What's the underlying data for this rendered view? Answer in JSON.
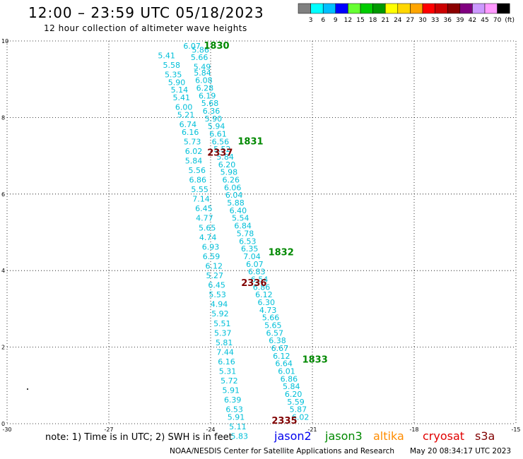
{
  "header": {
    "title": "12:00 – 23:59 UTC 05/18/2023",
    "subtitle": "12 hour collection of altimeter wave heights"
  },
  "footer": {
    "note": "note: 1) Time is in UTC; 2) SWH is in feet",
    "credit": "NOAA/NESDIS Center for Satellite Applications and Research",
    "timestamp": "May 20 08:34:17 UTC 2023"
  },
  "satellites": [
    {
      "name": "jason2",
      "color": "#0000ee"
    },
    {
      "name": "jason3",
      "color": "#008800"
    },
    {
      "name": "altika",
      "color": "#ff8c00"
    },
    {
      "name": "cryosat",
      "color": "#e00000"
    },
    {
      "name": "s3a",
      "color": "#800000"
    }
  ],
  "colorbar": {
    "labels": [
      "3",
      "6",
      "9",
      "12",
      "15",
      "18",
      "21",
      "24",
      "27",
      "30",
      "33",
      "36",
      "39",
      "42",
      "45",
      "70",
      "(ft)"
    ],
    "colors": [
      "#808080",
      "#00ffff",
      "#00bfff",
      "#0000ff",
      "#66ff33",
      "#00cc00",
      "#009900",
      "#ffff00",
      "#ffd700",
      "#ffa500",
      "#ff0000",
      "#cc0000",
      "#8b0000",
      "#800080",
      "#cc99ff",
      "#ff99ff",
      "#000000"
    ]
  },
  "chart_data": {
    "type": "scatter",
    "xlim": [
      -30,
      -15
    ],
    "ylim": [
      0,
      10
    ],
    "x_ticks": [
      -30,
      -27,
      -24,
      -21,
      -18,
      -15
    ],
    "y_ticks": [
      0,
      2,
      4,
      6,
      8,
      10
    ],
    "value_color": "#00bfd8",
    "series": [
      {
        "name": "jason3",
        "values": [
          "6.07",
          "5.86",
          "5.66",
          "5.49",
          "5.84",
          "6.08",
          "6.28",
          "6.19",
          "5.68",
          "6.36",
          "5.90",
          "5.94",
          "6.61",
          "6.56",
          "5.52",
          "5.84",
          "6.20",
          "5.98",
          "6.26",
          "6.06",
          "6.04",
          "5.88",
          "6.40",
          "5.54",
          "6.84",
          "5.78",
          "6.53",
          "6.35",
          "7.04",
          "6.07",
          "6.83",
          "6.54",
          "6.86",
          "6.12",
          "6.30",
          "4.73",
          "5.66",
          "5.65",
          "6.57",
          "6.38",
          "6.67",
          "6.12",
          "6.64",
          "6.01",
          "6.86",
          "5.84",
          "6.20",
          "5.59",
          "5.87",
          "6.02"
        ],
        "x": [
          -24.55,
          -24.3,
          -24.33,
          -24.25,
          -24.24,
          -24.2,
          -24.17,
          -24.1,
          -24.02,
          -23.98,
          -23.92,
          -23.83,
          -23.78,
          -23.71,
          -23.66,
          -23.57,
          -23.52,
          -23.46,
          -23.4,
          -23.35,
          -23.31,
          -23.26,
          -23.19,
          -23.12,
          -23.05,
          -22.98,
          -22.91,
          -22.85,
          -22.78,
          -22.7,
          -22.64,
          -22.56,
          -22.5,
          -22.43,
          -22.36,
          -22.31,
          -22.23,
          -22.16,
          -22.11,
          -22.03,
          -21.96,
          -21.91,
          -21.84,
          -21.76,
          -21.69,
          -21.62,
          -21.56,
          -21.49,
          -21.42,
          -21.35
        ],
        "y": [
          9.8,
          9.7,
          9.5,
          9.25,
          9.1,
          8.9,
          8.7,
          8.5,
          8.3,
          8.1,
          7.9,
          7.7,
          7.5,
          7.3,
          7.1,
          6.9,
          6.7,
          6.5,
          6.3,
          6.1,
          5.9,
          5.7,
          5.5,
          5.3,
          5.1,
          4.9,
          4.7,
          4.5,
          4.3,
          4.1,
          3.9,
          3.7,
          3.5,
          3.3,
          3.1,
          2.9,
          2.7,
          2.5,
          2.3,
          2.1,
          1.9,
          1.7,
          1.5,
          1.3,
          1.1,
          0.9,
          0.7,
          0.5,
          0.3,
          0.1
        ],
        "time_labels": [
          {
            "text": "1830",
            "x": -24.2,
            "y": 9.8
          },
          {
            "text": "1831",
            "x": -23.2,
            "y": 7.3
          },
          {
            "text": "1832",
            "x": -22.3,
            "y": 4.4
          },
          {
            "text": "1833",
            "x": -21.3,
            "y": 1.6
          }
        ]
      },
      {
        "name": "s3a",
        "values": [
          "5.41",
          "5.58",
          "5.35",
          "5.90",
          "5.14",
          "5.41",
          "6.00",
          "5.21",
          "6.74",
          "6.16",
          "5.73",
          "6.02",
          "5.84",
          "5.56",
          "6.86",
          "5.55",
          "7.14",
          "6.45",
          "4.77",
          "5.65",
          "4.74",
          "6.93",
          "6.59",
          "6.12",
          "5.27",
          "6.45",
          "5.53",
          "4.94",
          "5.92",
          "5.51",
          "5.37",
          "5.81",
          "7.44",
          "6.16",
          "5.31",
          "5.72",
          "5.91",
          "6.39",
          "6.53",
          "5.91",
          "5.11",
          "5.83"
        ],
        "x": [
          -25.3,
          -25.15,
          -25.1,
          -25.0,
          -24.92,
          -24.86,
          -24.79,
          -24.73,
          -24.67,
          -24.6,
          -24.54,
          -24.5,
          -24.5,
          -24.4,
          -24.38,
          -24.32,
          -24.28,
          -24.2,
          -24.18,
          -24.1,
          -24.08,
          -24.0,
          -23.98,
          -23.9,
          -23.88,
          -23.82,
          -23.8,
          -23.75,
          -23.72,
          -23.66,
          -23.64,
          -23.6,
          -23.57,
          -23.53,
          -23.5,
          -23.45,
          -23.4,
          -23.35,
          -23.3,
          -23.25,
          -23.2,
          -23.15
        ],
        "y": [
          9.55,
          9.3,
          9.05,
          8.85,
          8.65,
          8.45,
          8.2,
          8.0,
          7.75,
          7.55,
          7.3,
          7.05,
          6.8,
          6.55,
          6.3,
          6.05,
          5.8,
          5.55,
          5.3,
          5.05,
          4.8,
          4.55,
          4.3,
          4.05,
          3.8,
          3.55,
          3.3,
          3.05,
          2.8,
          2.55,
          2.3,
          2.05,
          1.8,
          1.55,
          1.3,
          1.05,
          0.8,
          0.55,
          0.3,
          0.1,
          -0.15,
          -0.4
        ],
        "time_labels": [
          {
            "text": "2337",
            "x": -24.1,
            "y": 7.0
          },
          {
            "text": "2336",
            "x": -23.1,
            "y": 3.6
          },
          {
            "text": "2335",
            "x": -22.2,
            "y": 0.0
          }
        ]
      }
    ]
  }
}
